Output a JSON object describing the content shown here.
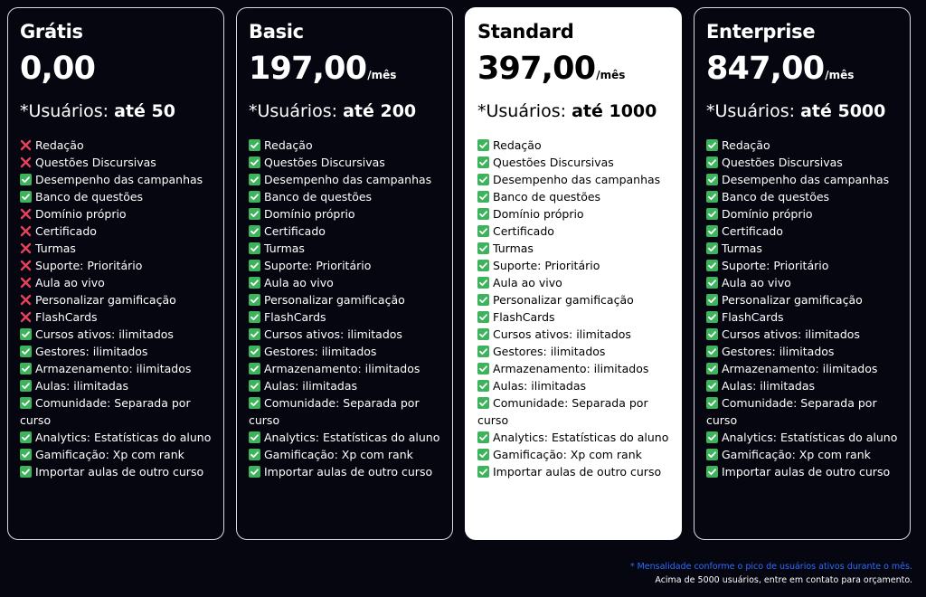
{
  "colors": {
    "background": "#05060f",
    "card_highlight": "#ffffff",
    "check": "#3db35c",
    "cross": "#e8415a",
    "footnote_accent": "#2f6bff"
  },
  "plans": [
    {
      "name": "Grátis",
      "price": "0,00",
      "per": "",
      "users_label": "*Usuários:",
      "users_value": "até 50",
      "features": [
        {
          "icon": "cross",
          "text": "Redação"
        },
        {
          "icon": "cross",
          "text": "Questões Discursivas"
        },
        {
          "icon": "check",
          "text": "Desempenho das campanhas"
        },
        {
          "icon": "check",
          "text": "Banco de questões"
        },
        {
          "icon": "cross",
          "text": "Domínio próprio"
        },
        {
          "icon": "cross",
          "text": "Certificado"
        },
        {
          "icon": "cross",
          "text": "Turmas"
        },
        {
          "icon": "cross",
          "text": "Suporte: Prioritário"
        },
        {
          "icon": "cross",
          "text": "Aula ao vivo"
        },
        {
          "icon": "cross",
          "text": "Personalizar gamificação"
        },
        {
          "icon": "cross",
          "text": "FlashCards"
        },
        {
          "icon": "check",
          "text": "Cursos ativos: ilimitados"
        },
        {
          "icon": "check",
          "text": "Gestores: ilimitados"
        },
        {
          "icon": "check",
          "text": "Armazenamento: ilimitados"
        },
        {
          "icon": "check",
          "text": "Aulas: ilimitadas"
        },
        {
          "icon": "check",
          "text": "Comunidade: Separada por curso"
        },
        {
          "icon": "check",
          "text": "Analytics: Estatísticas do aluno"
        },
        {
          "icon": "check",
          "text": "Gamificação: Xp com rank"
        },
        {
          "icon": "check",
          "text": "Importar aulas de outro curso"
        }
      ]
    },
    {
      "name": "Basic",
      "price": "197,00",
      "per": "/mês",
      "users_label": "*Usuários:",
      "users_value": "até 200",
      "features": [
        {
          "icon": "check",
          "text": "Redação"
        },
        {
          "icon": "check",
          "text": "Questões Discursivas"
        },
        {
          "icon": "check",
          "text": "Desempenho das campanhas"
        },
        {
          "icon": "check",
          "text": "Banco de questões"
        },
        {
          "icon": "check",
          "text": "Domínio próprio"
        },
        {
          "icon": "check",
          "text": "Certificado"
        },
        {
          "icon": "check",
          "text": "Turmas"
        },
        {
          "icon": "check",
          "text": "Suporte: Prioritário"
        },
        {
          "icon": "check",
          "text": "Aula ao vivo"
        },
        {
          "icon": "check",
          "text": "Personalizar gamificação"
        },
        {
          "icon": "check",
          "text": "FlashCards"
        },
        {
          "icon": "check",
          "text": "Cursos ativos: ilimitados"
        },
        {
          "icon": "check",
          "text": "Gestores: ilimitados"
        },
        {
          "icon": "check",
          "text": "Armazenamento: ilimitados"
        },
        {
          "icon": "check",
          "text": "Aulas: ilimitadas"
        },
        {
          "icon": "check",
          "text": "Comunidade: Separada por curso"
        },
        {
          "icon": "check",
          "text": "Analytics: Estatísticas do aluno"
        },
        {
          "icon": "check",
          "text": "Gamificação: Xp com rank"
        },
        {
          "icon": "check",
          "text": "Importar aulas de outro curso"
        }
      ]
    },
    {
      "name": "Standard",
      "price": "397,00",
      "per": "/mês",
      "users_label": "*Usuários:",
      "users_value": "até 1000",
      "features": [
        {
          "icon": "check",
          "text": "Redação"
        },
        {
          "icon": "check",
          "text": "Questões Discursivas"
        },
        {
          "icon": "check",
          "text": "Desempenho das campanhas"
        },
        {
          "icon": "check",
          "text": "Banco de questões"
        },
        {
          "icon": "check",
          "text": "Domínio próprio"
        },
        {
          "icon": "check",
          "text": "Certificado"
        },
        {
          "icon": "check",
          "text": "Turmas"
        },
        {
          "icon": "check",
          "text": "Suporte: Prioritário"
        },
        {
          "icon": "check",
          "text": "Aula ao vivo"
        },
        {
          "icon": "check",
          "text": "Personalizar gamificação"
        },
        {
          "icon": "check",
          "text": "FlashCards"
        },
        {
          "icon": "check",
          "text": "Cursos ativos: ilimitados"
        },
        {
          "icon": "check",
          "text": "Gestores: ilimitados"
        },
        {
          "icon": "check",
          "text": "Armazenamento: ilimitados"
        },
        {
          "icon": "check",
          "text": "Aulas: ilimitadas"
        },
        {
          "icon": "check",
          "text": "Comunidade: Separada por curso"
        },
        {
          "icon": "check",
          "text": "Analytics: Estatísticas do aluno"
        },
        {
          "icon": "check",
          "text": "Gamificação: Xp com rank"
        },
        {
          "icon": "check",
          "text": "Importar aulas de outro curso"
        }
      ]
    },
    {
      "name": "Enterprise",
      "price": "847,00",
      "per": "/mês",
      "users_label": "*Usuários:",
      "users_value": "até 5000",
      "features": [
        {
          "icon": "check",
          "text": "Redação"
        },
        {
          "icon": "check",
          "text": "Questões Discursivas"
        },
        {
          "icon": "check",
          "text": "Desempenho das campanhas"
        },
        {
          "icon": "check",
          "text": "Banco de questões"
        },
        {
          "icon": "check",
          "text": "Domínio próprio"
        },
        {
          "icon": "check",
          "text": "Certificado"
        },
        {
          "icon": "check",
          "text": "Turmas"
        },
        {
          "icon": "check",
          "text": "Suporte: Prioritário"
        },
        {
          "icon": "check",
          "text": "Aula ao vivo"
        },
        {
          "icon": "check",
          "text": "Personalizar gamificação"
        },
        {
          "icon": "check",
          "text": "FlashCards"
        },
        {
          "icon": "check",
          "text": "Cursos ativos: ilimitados"
        },
        {
          "icon": "check",
          "text": "Gestores: ilimitados"
        },
        {
          "icon": "check",
          "text": "Armazenamento: ilimitados"
        },
        {
          "icon": "check",
          "text": "Aulas: ilimitadas"
        },
        {
          "icon": "check",
          "text": "Comunidade: Separada por curso"
        },
        {
          "icon": "check",
          "text": "Analytics: Estatísticas do aluno"
        },
        {
          "icon": "check",
          "text": "Gamificação: Xp com rank"
        },
        {
          "icon": "check",
          "text": "Importar aulas de outro curso"
        }
      ]
    }
  ],
  "footnote": {
    "line1": "* Mensalidade conforme o pico de usuários ativos durante o mês.",
    "line2": "Acima de 5000 usuários, entre em contato para orçamento."
  }
}
